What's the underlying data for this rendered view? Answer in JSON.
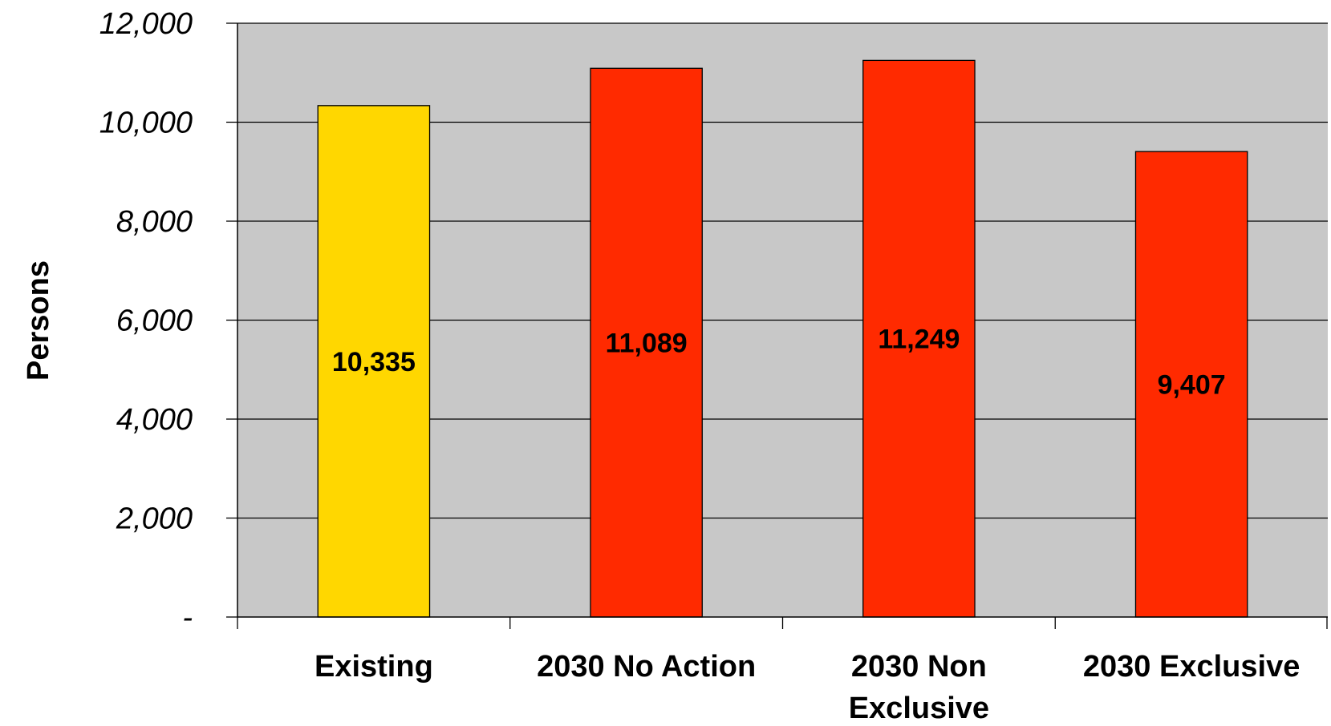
{
  "chart_data": {
    "type": "bar",
    "ylabel": "Persons",
    "categories": [
      "Existing",
      "2030 No Action",
      "2030 Non Exclusive",
      "2030 Exclusive"
    ],
    "category_lines": [
      [
        "Existing"
      ],
      [
        "2030 No Action"
      ],
      [
        "2030 Non",
        "Exclusive"
      ],
      [
        "2030 Exclusive"
      ]
    ],
    "values": [
      10335,
      11089,
      11249,
      9407
    ],
    "data_labels": [
      "10,335",
      "11,089",
      "11,249",
      "9,407"
    ],
    "bar_colors": [
      "#FFD700",
      "#FF2A00",
      "#FF2A00",
      "#FF2A00"
    ],
    "ylim": [
      0,
      12000
    ],
    "yticks": [
      0,
      2000,
      4000,
      6000,
      8000,
      10000,
      12000
    ],
    "ytick_labels": [
      "-",
      "2,000",
      "4,000",
      "6,000",
      "8,000",
      "10,000",
      "12,000"
    ],
    "plot_background": "#C8C8C8",
    "gridlines": true,
    "legend": "none"
  }
}
